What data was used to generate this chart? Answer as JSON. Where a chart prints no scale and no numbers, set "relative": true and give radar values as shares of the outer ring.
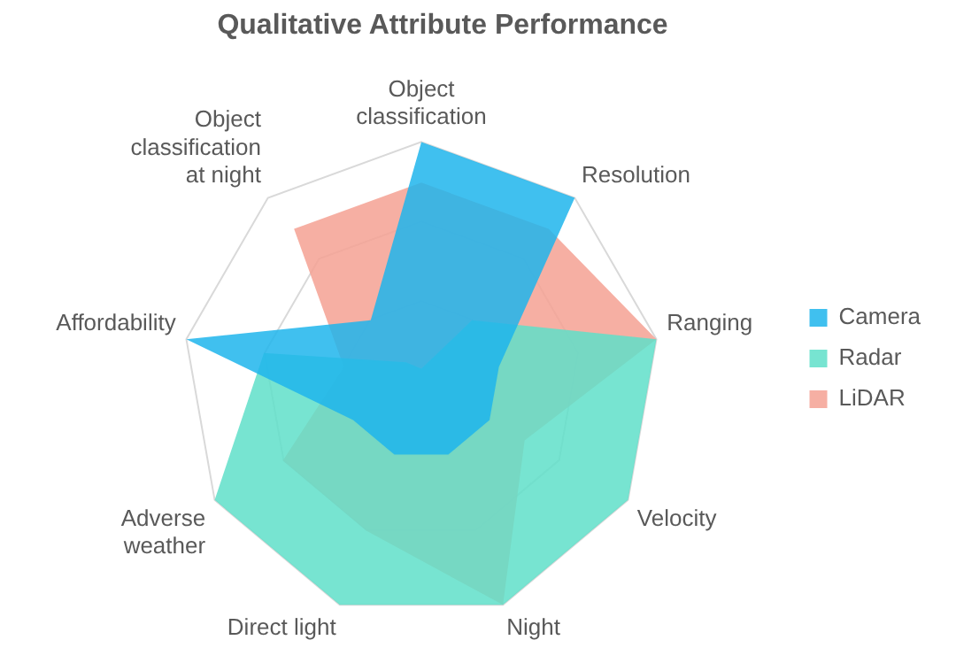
{
  "chart_data": {
    "type": "radar",
    "title": "Qualitative Attribute Performance",
    "categories": [
      "Object classification",
      "Resolution",
      "Ranging",
      "Velocity",
      "Night",
      "Direct light",
      "Adverse weather",
      "Affordability",
      "Object classification at night"
    ],
    "relative": true,
    "grid": true,
    "legend": "right",
    "series": [
      {
        "name": "Camera",
        "color": "#1fb5ec",
        "values": [
          1,
          1,
          0.33,
          0.33,
          0.33,
          0.33,
          0.33,
          1,
          0.33
        ]
      },
      {
        "name": "Radar",
        "color": "#5fdfc9",
        "values": [
          0.05,
          0.33,
          1,
          1,
          1,
          1,
          1,
          0.67,
          0.1
        ]
      },
      {
        "name": "LiDAR",
        "color": "#f5a193",
        "values": [
          0.83,
          0.83,
          1,
          0.5,
          1,
          0.67,
          0.67,
          0.33,
          0.83
        ]
      }
    ]
  }
}
